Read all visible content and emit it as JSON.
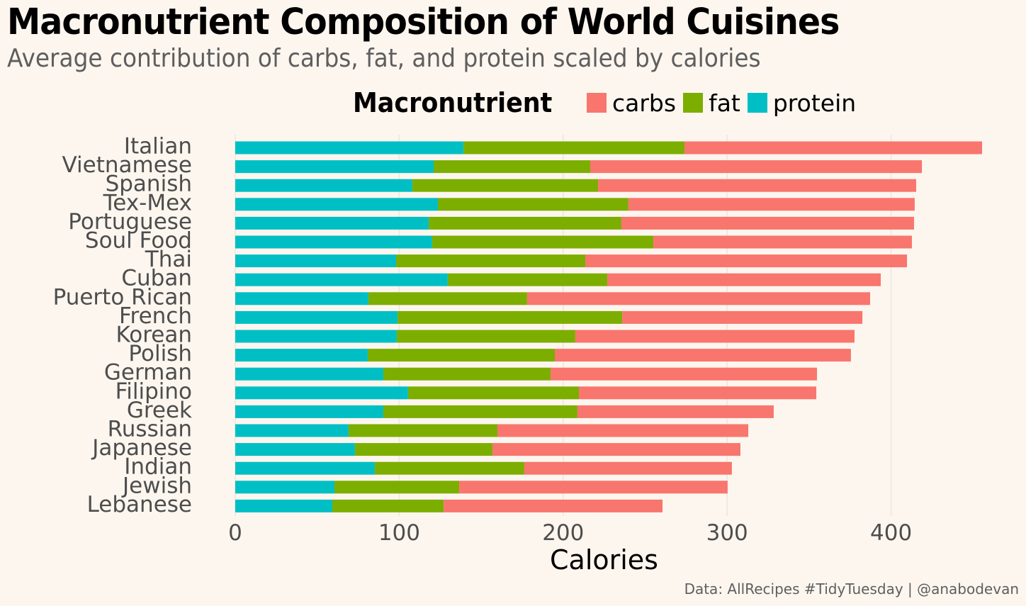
{
  "title": "Macronutrient Composition of World Cuisines",
  "subtitle": "Average contribution of carbs, fat, and protein scaled by calories",
  "caption": "Data: AllRecipes #TidyTuesday | @anabodevan",
  "legend": {
    "title": "Macronutrient",
    "items": [
      {
        "label": "carbs",
        "color": "#f8766d"
      },
      {
        "label": "fat",
        "color": "#7cae00"
      },
      {
        "label": "protein",
        "color": "#00bfc4"
      }
    ]
  },
  "chart_data": {
    "type": "bar",
    "orientation": "horizontal",
    "stacked": true,
    "title": "Macronutrient Composition of World Cuisines",
    "subtitle": "Average contribution of carbs, fat, and protein scaled by calories",
    "xlabel": "Calories",
    "ylabel": "",
    "xlim": [
      0,
      460
    ],
    "xticks": [
      0,
      100,
      200,
      300,
      400
    ],
    "grid": "vertical",
    "legend_position": "top",
    "stack_order": [
      "protein",
      "fat",
      "carbs"
    ],
    "categories": [
      "Italian",
      "Vietnamese",
      "Spanish",
      "Tex-Mex",
      "Portuguese",
      "Soul Food",
      "Thai",
      "Cuban",
      "Puerto Rican",
      "French",
      "Korean",
      "Polish",
      "German",
      "Filipino",
      "Greek",
      "Russian",
      "Japanese",
      "Indian",
      "Jewish",
      "Lebanese"
    ],
    "series": [
      {
        "name": "protein",
        "color": "#00bfc4",
        "values": [
          139.2,
          121.0,
          108.0,
          123.6,
          118.0,
          120.1,
          98.1,
          129.6,
          81.2,
          99.0,
          98.5,
          80.8,
          90.3,
          105.4,
          90.3,
          69.1,
          73.0,
          85.1,
          60.5,
          59.2
        ]
      },
      {
        "name": "fat",
        "color": "#7cae00",
        "values": [
          134.8,
          95.5,
          113.3,
          116.2,
          117.5,
          134.9,
          115.4,
          97.3,
          96.8,
          137.0,
          108.9,
          114.1,
          102.0,
          104.2,
          118.4,
          90.8,
          83.9,
          91.2,
          76.1,
          67.9
        ]
      },
      {
        "name": "carbs",
        "color": "#f8766d",
        "values": [
          181.5,
          202.3,
          194.0,
          174.6,
          178.5,
          157.7,
          196.2,
          166.8,
          209.2,
          146.5,
          170.3,
          180.6,
          162.5,
          144.8,
          119.7,
          153.0,
          151.2,
          126.6,
          163.7,
          133.5
        ]
      }
    ]
  }
}
